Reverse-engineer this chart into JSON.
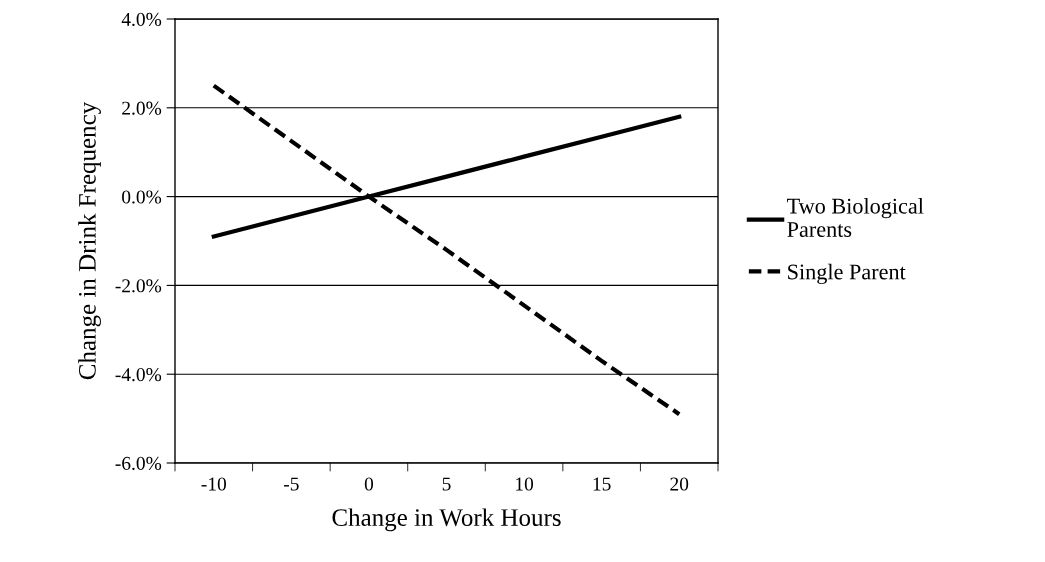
{
  "chart_data": {
    "type": "line",
    "xlabel": "Change in Work Hours",
    "ylabel": "Change in Drink Frequency",
    "categories": [
      "-10",
      "-5",
      "0",
      "5",
      "10",
      "15",
      "20"
    ],
    "series": [
      {
        "name": "Two Biological\nParents",
        "color": "#000000",
        "line_style": "solid",
        "values": [
          -0.9,
          -0.45,
          0,
          0.45,
          0.9,
          1.35,
          1.8
        ]
      },
      {
        "name": "Single Parent",
        "color": "#000000",
        "line_style": "dashed",
        "values": [
          2.5,
          1.25,
          0,
          -1.2,
          -2.45,
          -3.7,
          -4.9
        ]
      }
    ],
    "ylim": [
      -6,
      4
    ],
    "yticks": [
      {
        "value": -6,
        "label": "-6.0%"
      },
      {
        "value": -4,
        "label": "-4.0%"
      },
      {
        "value": -2,
        "label": "-2.0%"
      },
      {
        "value": 0,
        "label": "0.0%"
      },
      {
        "value": 2,
        "label": "2.0%"
      },
      {
        "value": 4,
        "label": "4.0%"
      }
    ],
    "grid": "y",
    "legend": "right",
    "marker": "none"
  }
}
